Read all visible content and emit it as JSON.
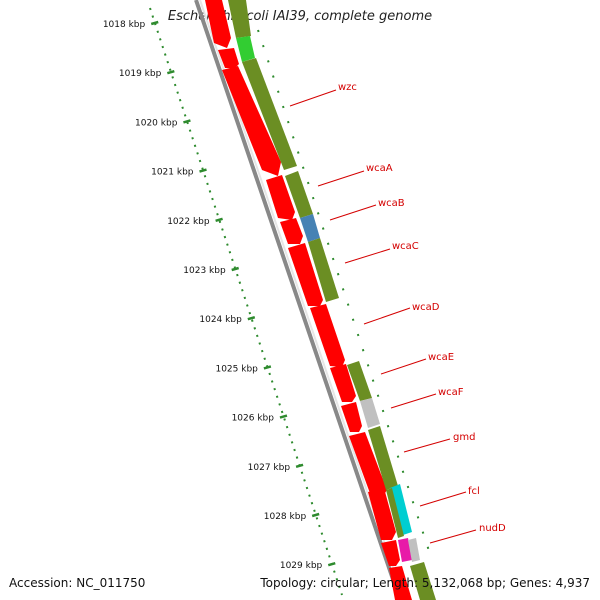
{
  "title": "Escherichia coli IAI39, complete genome",
  "footer": {
    "accession": "Accession: NC_011750",
    "summary": "Topology: circular; Length: 5,132,068 bp; Genes: 4,937"
  },
  "ruler_kbp": [
    "1018 kbp",
    "1019 kbp",
    "1020 kbp",
    "1021 kbp",
    "1022 kbp",
    "1023 kbp",
    "1024 kbp",
    "1025 kbp",
    "1026 kbp",
    "1027 kbp",
    "1028 kbp",
    "1029 kbp"
  ],
  "gene_labels": [
    "wzc",
    "wcaA",
    "wcaB",
    "wcaC",
    "wcaD",
    "wcaE",
    "wcaF",
    "gmd",
    "fcl",
    "nudD"
  ],
  "colors": {
    "cds": "#ff0000",
    "gene_band": "#6b8e23",
    "ruler": "#2e8b2e",
    "backbone": "#888888",
    "label": "#d40000",
    "wcaB_band": "#4682b4",
    "wcaF_band": "#c0c0c0",
    "fcl_band": "#00ced1",
    "nudD_band": "#e81aa8",
    "top_band": "#32cd32"
  }
}
